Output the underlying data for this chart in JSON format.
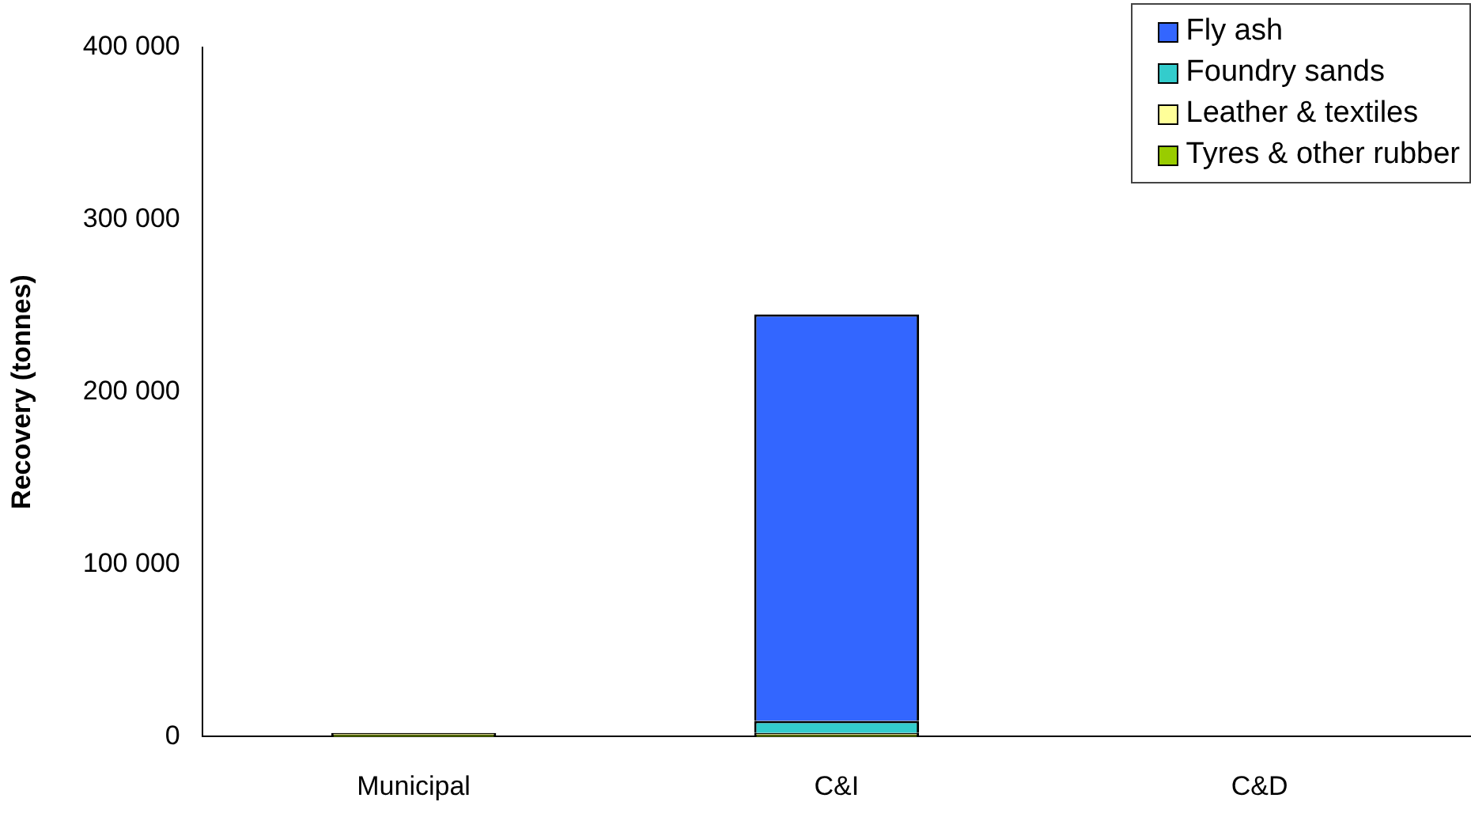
{
  "chart_data": {
    "type": "bar",
    "stacked": true,
    "ylabel": "Recovery (tonnes)",
    "categories": [
      "Municipal",
      "C&I",
      "C&D"
    ],
    "series": [
      {
        "name": "Tyres & other rubber",
        "color": "#99cc00",
        "values": [
          1000,
          1000,
          null
        ]
      },
      {
        "name": "Leather & textiles",
        "color": "#ffff99",
        "values": [
          1000,
          1000,
          null
        ]
      },
      {
        "name": "Foundry sands",
        "color": "#33cccc",
        "values": [
          null,
          7000,
          null
        ]
      },
      {
        "name": "Fly ash",
        "color": "#3366ff",
        "values": [
          null,
          236000,
          null
        ]
      }
    ],
    "ylim": [
      0,
      400000
    ],
    "yticks": [
      {
        "value": 0,
        "label": "0"
      },
      {
        "value": 100000,
        "label": "100 000"
      },
      {
        "value": 200000,
        "label": "200 000"
      },
      {
        "value": 300000,
        "label": "300 000"
      },
      {
        "value": 400000,
        "label": "400 000"
      }
    ],
    "grid": false,
    "legend": "top right"
  }
}
